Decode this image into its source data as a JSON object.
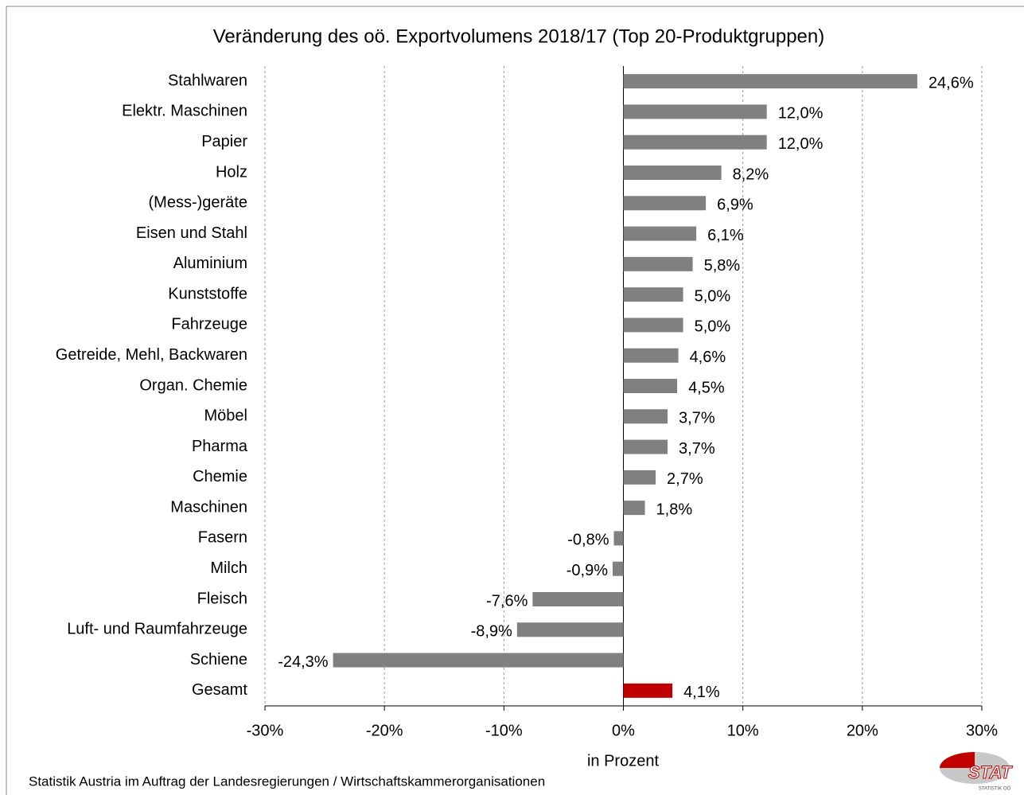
{
  "chart_data": {
    "type": "hbar",
    "title": "Veränderung des oö. Exportvolumens 2018/17 (Top 20-Produktgruppen)",
    "categories": [
      "Stahlwaren",
      "Elektr. Maschinen",
      "Papier",
      "Holz",
      "(Mess-)geräte",
      "Eisen und Stahl",
      "Aluminium",
      "Kunststoffe",
      "Fahrzeuge",
      "Getreide, Mehl, Backwaren",
      "Organ. Chemie",
      "Möbel",
      "Pharma",
      "Chemie",
      "Maschinen",
      "Fasern",
      "Milch",
      "Fleisch",
      "Luft- und Raumfahrzeuge",
      "Schiene",
      "Gesamt"
    ],
    "values": [
      24.6,
      12.0,
      12.0,
      8.2,
      6.9,
      6.1,
      5.8,
      5.0,
      5.0,
      4.6,
      4.5,
      3.7,
      3.7,
      2.7,
      1.8,
      -0.8,
      -0.9,
      -7.6,
      -8.9,
      -24.3,
      4.1
    ],
    "value_labels": [
      "24,6%",
      "12,0%",
      "12,0%",
      "8,2%",
      "6,9%",
      "6,1%",
      "5,8%",
      "5,0%",
      "5,0%",
      "4,6%",
      "4,5%",
      "3,7%",
      "3,7%",
      "2,7%",
      "1,8%",
      "-0,8%",
      "-0,9%",
      "-7,6%",
      "-8,9%",
      "-24,3%",
      "4,1%"
    ],
    "colors": [
      "#808080",
      "#808080",
      "#808080",
      "#808080",
      "#808080",
      "#808080",
      "#808080",
      "#808080",
      "#808080",
      "#808080",
      "#808080",
      "#808080",
      "#808080",
      "#808080",
      "#808080",
      "#808080",
      "#808080",
      "#808080",
      "#808080",
      "#808080",
      "#c00000"
    ],
    "xlim": [
      -30,
      30
    ],
    "xticks": [
      {
        "value": -30,
        "label": "-30%"
      },
      {
        "value": -20,
        "label": "-20%"
      },
      {
        "value": -10,
        "label": "-10%"
      },
      {
        "value": 0,
        "label": "0%"
      },
      {
        "value": 10,
        "label": "10%"
      },
      {
        "value": 20,
        "label": "20%"
      },
      {
        "value": 30,
        "label": "30%"
      }
    ],
    "xlabel": "in Prozent",
    "grid": true,
    "source": "Statistik Austria im Auftrag der Landesregierungen / Wirtschaftskammerorganisationen",
    "logo": "STAT",
    "logo_subtitle": "STATISTIK OÖ"
  }
}
